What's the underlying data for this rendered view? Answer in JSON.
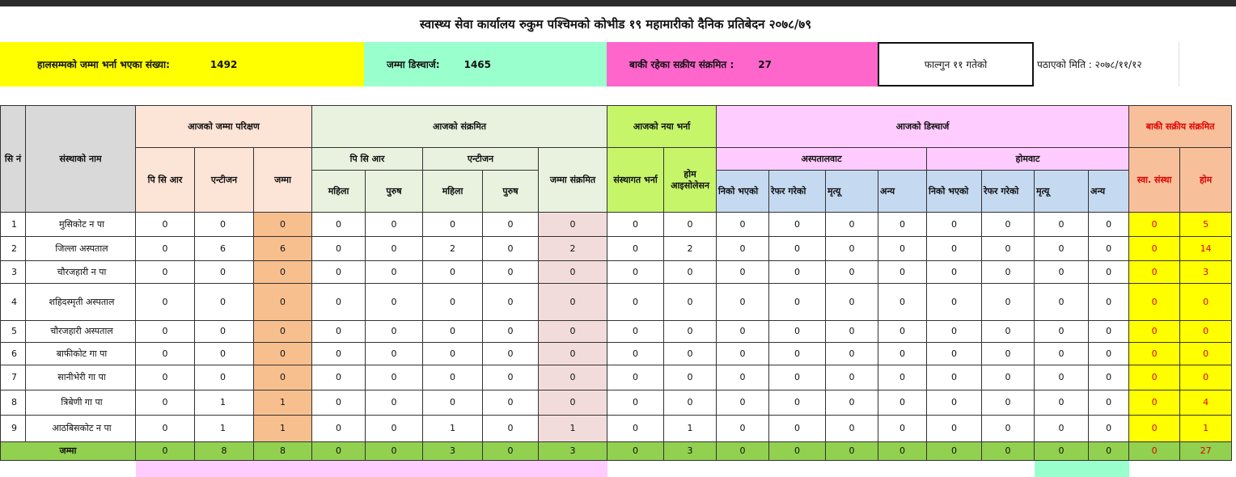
{
  "title": "स्वास्थ्य सेवा कार्यालय रुकुम पश्चिमको  कोभीड १९  महामारीको दैनिक प्रतिबेदन २०७८/७९",
  "summary": {
    "admitted_label": "हालसम्मको जम्मा भर्ना भएका संख्या:",
    "admitted_value": "1492",
    "discharged_label": "जम्मा डिस्चार्ज:",
    "discharged_value": "1465",
    "active_label": "बाकी रहेका सक्रीय संक्रमित :",
    "active_value": "27",
    "day": "फाल्गुन ११ गतेको",
    "sent_date": "पठाएको मिति : २०७८/११/१२"
  },
  "colors": {
    "admitted": "#ffff00",
    "discharged": "#99ffcc",
    "active": "#ff66cc",
    "total_row": "#92d050",
    "active_text": "#e00000"
  },
  "headers": {
    "sn": "सि नं",
    "name": "संस्थाको नाम",
    "testing": "आजको जम्मा परिक्षण",
    "infected": "आजको संक्रमित",
    "new_admission": "आजको नया भर्ना",
    "discharge": "आजको डिस्चार्ज",
    "active": "बाकी सक्रीय संक्रमित",
    "pcr": "पि सि आर",
    "antigen": "एन्टीजन",
    "total": "जम्मा",
    "total_infected": "जम्मा संक्रमित",
    "institutional": "संस्थागत भर्ना",
    "home_isolation": "होम आइसोलेसन",
    "from_hospital": "अस्पतालवाट",
    "from_home": "होमवाट",
    "health_inst": "स्वा. संस्था",
    "home": "होम",
    "female": "महिला",
    "male": "पुरुष",
    "cured": "निको भएको",
    "referred": "रेफर गरेको",
    "death": "मृत्यू",
    "other": "अन्य"
  },
  "rows": [
    [
      "1",
      "मुसिकोट न पा",
      "0",
      "0",
      "0",
      "0",
      "0",
      "0",
      "0",
      "0",
      "0",
      "0",
      "0",
      "0",
      "0",
      "0",
      "0",
      "0",
      "0",
      "0",
      "0",
      "5"
    ],
    [
      "2",
      "जिल्ला अस्पताल",
      "0",
      "6",
      "6",
      "0",
      "0",
      "2",
      "0",
      "2",
      "0",
      "2",
      "0",
      "0",
      "0",
      "0",
      "0",
      "0",
      "0",
      "0",
      "0",
      "14"
    ],
    [
      "3",
      "चौरजहारी न पा",
      "0",
      "0",
      "0",
      "0",
      "0",
      "0",
      "0",
      "0",
      "0",
      "0",
      "0",
      "0",
      "0",
      "0",
      "0",
      "0",
      "0",
      "0",
      "0",
      "3"
    ],
    [
      "4",
      "शहिदस्मृती अस्पताल",
      "0",
      "0",
      "0",
      "0",
      "0",
      "0",
      "0",
      "0",
      "0",
      "0",
      "0",
      "0",
      "0",
      "0",
      "0",
      "0",
      "0",
      "0",
      "0",
      "0"
    ],
    [
      "5",
      "चौरजहारी अस्पताल",
      "0",
      "0",
      "0",
      "0",
      "0",
      "0",
      "0",
      "0",
      "0",
      "0",
      "0",
      "0",
      "0",
      "0",
      "0",
      "0",
      "0",
      "0",
      "0",
      "0"
    ],
    [
      "6",
      "बाफीकोट गा पा",
      "0",
      "0",
      "0",
      "0",
      "0",
      "0",
      "0",
      "0",
      "0",
      "0",
      "0",
      "0",
      "0",
      "0",
      "0",
      "0",
      "0",
      "0",
      "0",
      "0"
    ],
    [
      "7",
      "सानीभेरी गा पा",
      "0",
      "0",
      "0",
      "0",
      "0",
      "0",
      "0",
      "0",
      "0",
      "0",
      "0",
      "0",
      "0",
      "0",
      "0",
      "0",
      "0",
      "0",
      "0",
      "0"
    ],
    [
      "8",
      "त्रिबेणी गा पा",
      "0",
      "1",
      "1",
      "0",
      "0",
      "0",
      "0",
      "0",
      "0",
      "0",
      "0",
      "0",
      "0",
      "0",
      "0",
      "0",
      "0",
      "0",
      "0",
      "4"
    ],
    [
      "9",
      "आठबिसकोट न पा",
      "0",
      "1",
      "1",
      "0",
      "0",
      "1",
      "0",
      "1",
      "0",
      "1",
      "0",
      "0",
      "0",
      "0",
      "0",
      "0",
      "0",
      "0",
      "0",
      "1"
    ]
  ],
  "totals": {
    "label": "जम्मा",
    "values": [
      "0",
      "8",
      "8",
      "0",
      "0",
      "3",
      "0",
      "3",
      "0",
      "3",
      "0",
      "0",
      "0",
      "0",
      "0",
      "0",
      "0",
      "0",
      "0",
      "27"
    ]
  }
}
